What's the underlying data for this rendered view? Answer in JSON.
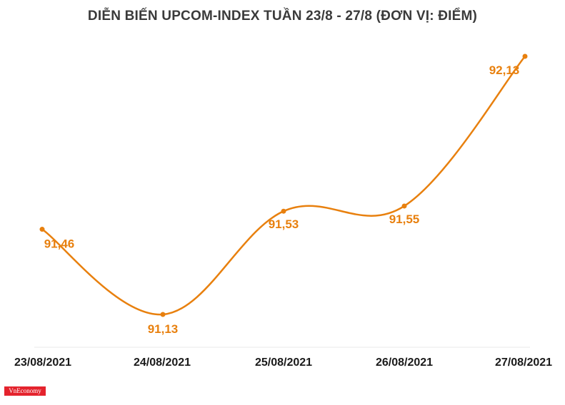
{
  "chart_data": {
    "type": "line",
    "title": "DIỄN BIẾN UPCOM-INDEX TUẦN 23/8 - 27/8 (ĐƠN VỊ: ĐIỂM)",
    "categories": [
      "23/08/2021",
      "24/08/2021",
      "25/08/2021",
      "26/08/2021",
      "27/08/2021"
    ],
    "series": [
      {
        "values": [
          91.46,
          91.13,
          91.53,
          91.55,
          92.13
        ]
      }
    ],
    "data_labels": [
      "91,46",
      "91,13",
      "91,53",
      "91,55",
      "92,13"
    ],
    "ylim": [
      91.13,
      92.13
    ],
    "grid": false,
    "legend": "none",
    "line_color": "#e8800e",
    "label_color": "#e8800e",
    "curve": "smooth"
  },
  "logo": {
    "text": "VnEconomy",
    "color": "#e4232d"
  }
}
